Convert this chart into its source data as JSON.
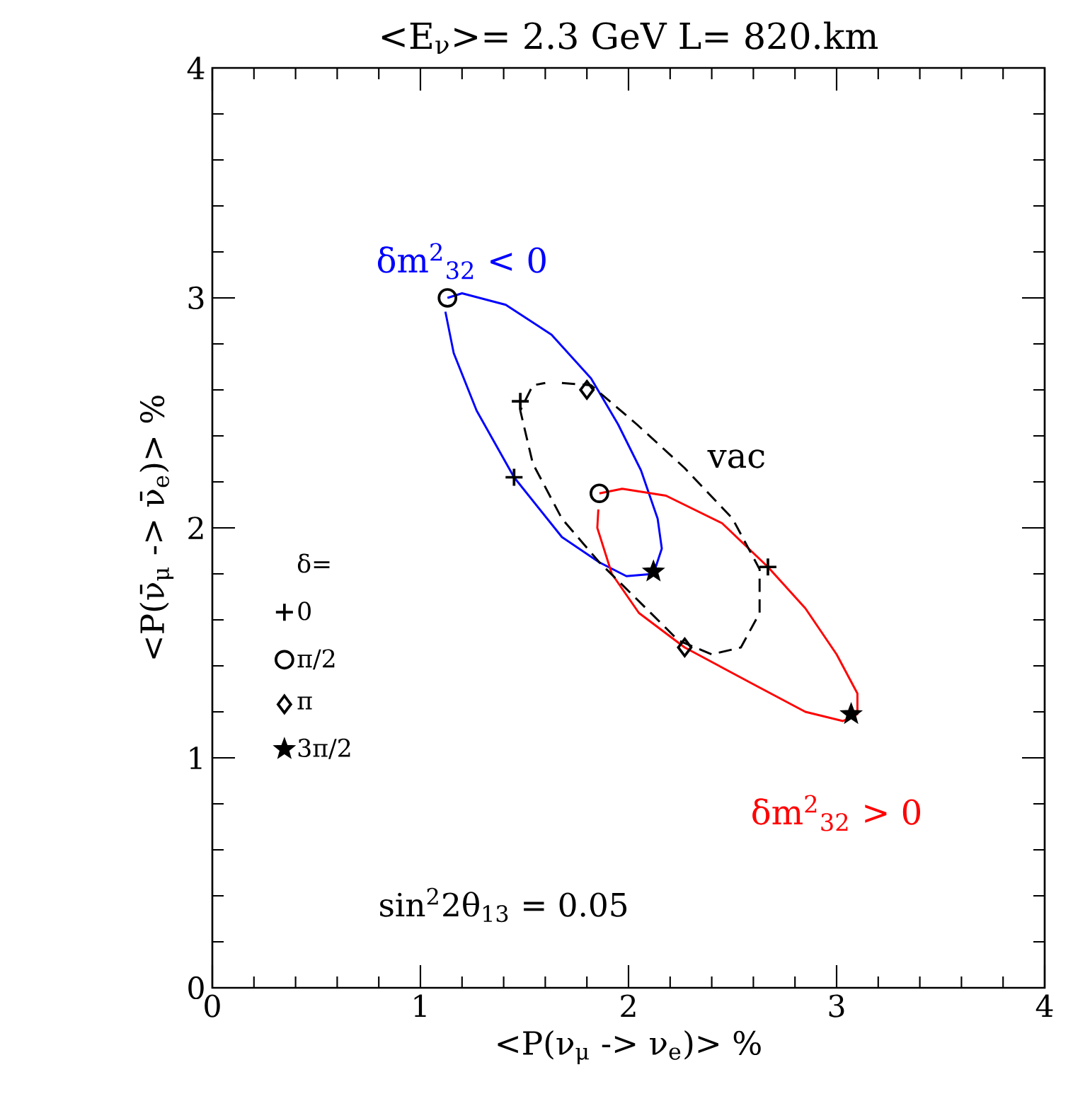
{
  "chart_data": {
    "type": "line",
    "title": "<E$_{ν}$>= 2.3 GeV  L= 820.km",
    "xlabel": "<P(ν$_{μ}$ -> ν$_{e}$)> %",
    "ylabel": "<P(ν̄$_{μ}$ -> ν̄$_{e}$)> %",
    "xlim": [
      0,
      4
    ],
    "ylim": [
      0,
      4
    ],
    "xticks": [
      0,
      1,
      2,
      3,
      4
    ],
    "yticks": [
      0,
      1,
      2,
      3,
      4
    ],
    "legend": "left",
    "legend_title": "δ=",
    "annotations": [
      "sin$^{2}$2θ$_{13}$ = 0.05"
    ],
    "series": [
      {
        "name": "δm$^{2}$$_{32}$ < 0",
        "color": "#0000ff",
        "line_style": "solid",
        "x": [
          1.13,
          1.2,
          1.41,
          1.63,
          1.82,
          1.95,
          2.06,
          2.14,
          2.16,
          2.12,
          1.99,
          1.86,
          1.68,
          1.45,
          1.27,
          1.16,
          1.12
        ],
        "values": [
          3.0,
          3.02,
          2.97,
          2.84,
          2.65,
          2.45,
          2.25,
          2.04,
          1.91,
          1.8,
          1.79,
          1.85,
          1.96,
          2.22,
          2.51,
          2.76,
          2.94
        ]
      },
      {
        "name": "δm$^{2}$$_{32}$ > 0",
        "color": "#ff0000",
        "line_style": "solid",
        "x": [
          1.86,
          1.97,
          2.18,
          2.45,
          2.67,
          2.85,
          3.0,
          3.1,
          3.1,
          3.03,
          2.85,
          2.6,
          2.27,
          2.05,
          1.92,
          1.85,
          1.855
        ],
        "values": [
          2.15,
          2.17,
          2.14,
          2.02,
          1.83,
          1.65,
          1.45,
          1.28,
          1.19,
          1.16,
          1.2,
          1.32,
          1.48,
          1.63,
          1.8,
          2.0,
          2.08
        ]
      },
      {
        "name": "vac",
        "color": "#000000",
        "line_style": "dashed",
        "x": [
          1.68,
          1.82,
          2.04,
          2.27,
          2.5,
          2.63,
          2.63,
          2.54,
          2.4,
          2.24,
          2.04,
          1.86,
          1.68,
          1.54,
          1.48,
          1.54,
          1.6
        ],
        "values": [
          2.63,
          2.62,
          2.45,
          2.26,
          2.04,
          1.82,
          1.63,
          1.48,
          1.45,
          1.51,
          1.69,
          1.85,
          2.04,
          2.28,
          2.51,
          2.62,
          2.63
        ]
      },
      {
        "name": "0",
        "type": "scatter",
        "color": "#000000",
        "marker": "cross",
        "x": [
          1.45,
          2.67,
          1.48
        ],
        "values": [
          2.22,
          1.83,
          2.55
        ]
      },
      {
        "name": "π/2",
        "type": "scatter",
        "color": "#000000",
        "marker": "circle",
        "x": [
          1.13,
          1.86
        ],
        "values": [
          3.0,
          2.15
        ]
      },
      {
        "name": "π",
        "type": "scatter",
        "color": "#000000",
        "marker": "diamond",
        "x": [
          1.8,
          2.27
        ],
        "values": [
          2.6,
          1.48
        ]
      },
      {
        "name": "3π/2",
        "type": "scatter",
        "color": "#000000",
        "marker": "star",
        "x": [
          2.12,
          3.07
        ],
        "values": [
          1.81,
          1.19
        ]
      }
    ]
  }
}
